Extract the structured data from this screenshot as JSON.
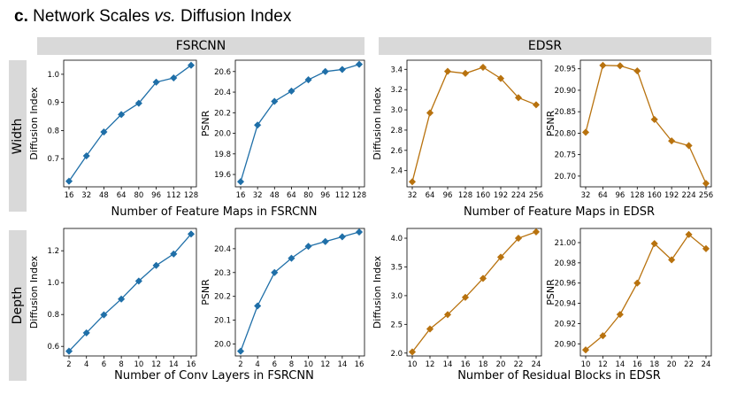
{
  "figure": {
    "label": "c.",
    "title_part1": "Network Scales ",
    "title_italic": "vs.",
    "title_part2": " Diffusion Index"
  },
  "columns": [
    "FSRCNN",
    "EDSR"
  ],
  "rows": [
    "Width",
    "Depth"
  ],
  "captions": [
    "Number of Feature Maps in FSRCNN",
    "Number of Feature Maps in EDSR",
    "Number of Conv Layers in FSRCNN",
    "Number of Residual Blocks in EDSR"
  ],
  "colors": {
    "fsrcnn": "#1f6fa8",
    "edsr": "#b8720e"
  },
  "chart_data": [
    {
      "type": "line",
      "marker": "diamond",
      "color_key": "fsrcnn",
      "ylabel": "Diffusion Index",
      "categories": [
        "16",
        "32",
        "48",
        "64",
        "80",
        "96",
        "112",
        "128"
      ],
      "values": [
        0.62,
        0.71,
        0.795,
        0.857,
        0.897,
        0.972,
        0.987,
        1.032
      ],
      "ylim": [
        0.6,
        1.05
      ],
      "yticks": [
        0.7,
        0.8,
        0.9,
        1.0
      ],
      "ytick_labels": [
        "0.7",
        "0.8",
        "0.9",
        "1.0"
      ]
    },
    {
      "type": "line",
      "marker": "diamond",
      "color_key": "fsrcnn",
      "ylabel": "PSNR",
      "categories": [
        "16",
        "32",
        "48",
        "64",
        "80",
        "96",
        "112",
        "128"
      ],
      "values": [
        19.53,
        20.08,
        20.31,
        20.41,
        20.52,
        20.6,
        20.62,
        20.67
      ],
      "ylim": [
        19.48,
        20.71
      ],
      "yticks": [
        19.6,
        19.8,
        20.0,
        20.2,
        20.4,
        20.6
      ],
      "ytick_labels": [
        "19.6",
        "19.8",
        "20.0",
        "20.2",
        "20.4",
        "20.6"
      ]
    },
    {
      "type": "line",
      "marker": "diamond",
      "color_key": "edsr",
      "ylabel": "Diffusion Index",
      "categories": [
        "32",
        "64",
        "96",
        "128",
        "160",
        "192",
        "224",
        "256"
      ],
      "values": [
        2.29,
        2.97,
        3.38,
        3.36,
        3.42,
        3.31,
        3.12,
        3.05
      ],
      "ylim": [
        2.24,
        3.49
      ],
      "yticks": [
        2.4,
        2.6,
        2.8,
        3.0,
        3.2,
        3.4
      ],
      "ytick_labels": [
        "2.4",
        "2.6",
        "2.8",
        "3.0",
        "3.2",
        "3.4"
      ]
    },
    {
      "type": "line",
      "marker": "diamond",
      "color_key": "edsr",
      "ylabel": "PSNR",
      "categories": [
        "32",
        "64",
        "96",
        "128",
        "160",
        "192",
        "224",
        "256"
      ],
      "values": [
        20.802,
        20.958,
        20.957,
        20.945,
        20.832,
        20.782,
        20.771,
        20.683
      ],
      "ylim": [
        20.675,
        20.97
      ],
      "yticks": [
        20.7,
        20.75,
        20.8,
        20.85,
        20.9,
        20.95
      ],
      "ytick_labels": [
        "20.70",
        "20.75",
        "20.80",
        "20.85",
        "20.90",
        "20.95"
      ]
    },
    {
      "type": "line",
      "marker": "diamond",
      "color_key": "fsrcnn",
      "ylabel": "Diffusion Index",
      "categories": [
        "2",
        "4",
        "6",
        "8",
        "10",
        "12",
        "14",
        "16"
      ],
      "values": [
        0.57,
        0.685,
        0.798,
        0.897,
        1.01,
        1.108,
        1.18,
        1.305
      ],
      "ylim": [
        0.54,
        1.34
      ],
      "yticks": [
        0.6,
        0.8,
        1.0,
        1.2
      ],
      "ytick_labels": [
        "0.6",
        "0.8",
        "1.0",
        "1.2"
      ]
    },
    {
      "type": "line",
      "marker": "diamond",
      "color_key": "fsrcnn",
      "ylabel": "PSNR",
      "categories": [
        "2",
        "4",
        "6",
        "8",
        "10",
        "12",
        "14",
        "16"
      ],
      "values": [
        19.97,
        20.16,
        20.3,
        20.36,
        20.41,
        20.43,
        20.45,
        20.47
      ],
      "ylim": [
        19.95,
        20.485
      ],
      "yticks": [
        20.0,
        20.1,
        20.2,
        20.3,
        20.4
      ],
      "ytick_labels": [
        "20.0",
        "20.1",
        "20.2",
        "20.3",
        "20.4"
      ]
    },
    {
      "type": "line",
      "marker": "diamond",
      "color_key": "edsr",
      "ylabel": "Diffusion Index",
      "categories": [
        "10",
        "12",
        "14",
        "16",
        "18",
        "20",
        "22",
        "24"
      ],
      "values": [
        2.02,
        2.42,
        2.67,
        2.97,
        3.3,
        3.67,
        4.0,
        4.11
      ],
      "ylim": [
        1.95,
        4.17
      ],
      "yticks": [
        2.0,
        2.5,
        3.0,
        3.5,
        4.0
      ],
      "ytick_labels": [
        "2.0",
        "2.5",
        "3.0",
        "3.5",
        "4.0"
      ]
    },
    {
      "type": "line",
      "marker": "diamond",
      "color_key": "edsr",
      "ylabel": "PSNR",
      "categories": [
        "10",
        "12",
        "14",
        "16",
        "18",
        "20",
        "22",
        "24"
      ],
      "values": [
        20.894,
        20.908,
        20.929,
        20.96,
        20.999,
        20.983,
        21.008,
        20.994
      ],
      "ylim": [
        20.888,
        21.014
      ],
      "yticks": [
        20.9,
        20.92,
        20.94,
        20.96,
        20.98,
        21.0
      ],
      "ytick_labels": [
        "20.90",
        "20.92",
        "20.94",
        "20.96",
        "20.98",
        "21.00"
      ]
    }
  ]
}
